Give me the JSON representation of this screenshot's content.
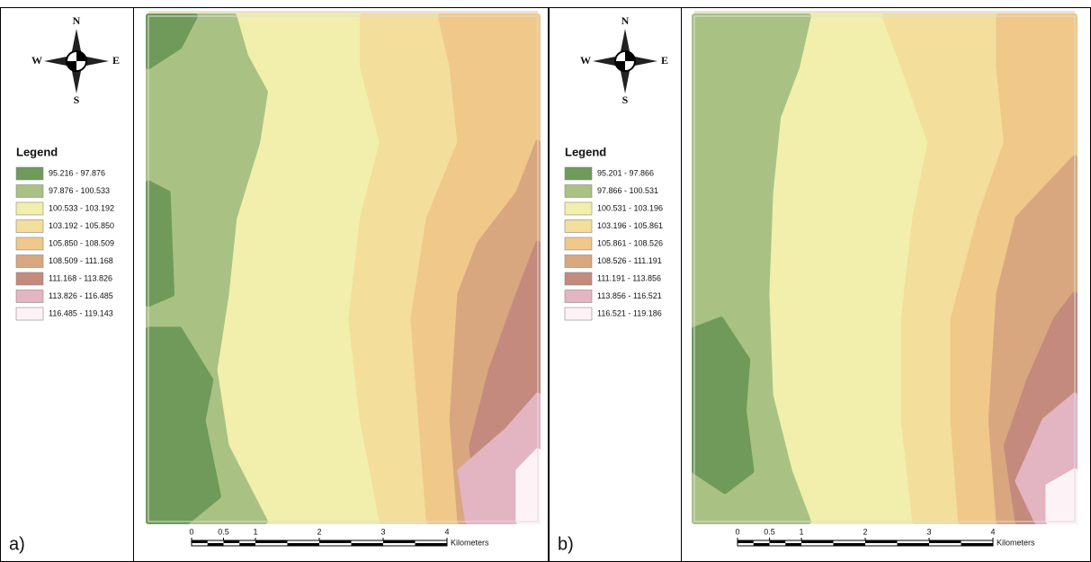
{
  "panels": [
    {
      "label": "a)",
      "compass": {
        "n": "N",
        "s": "S",
        "w": "W",
        "e": "E"
      },
      "legend": {
        "title": "Legend",
        "classes": [
          {
            "label": "95.216 - 97.876",
            "color": "#6f9a5a"
          },
          {
            "label": "97.876 - 100.533",
            "color": "#a9c284"
          },
          {
            "label": "100.533 - 103.192",
            "color": "#f1efab"
          },
          {
            "label": "103.192 - 105.850",
            "color": "#f3de9c"
          },
          {
            "label": "105.850 - 108.509",
            "color": "#efc88a"
          },
          {
            "label": "108.509 - 111.168",
            "color": "#d9a77f"
          },
          {
            "label": "111.168 - 113.826",
            "color": "#c38a7d"
          },
          {
            "label": "113.826 - 116.485",
            "color": "#e3b4c2"
          },
          {
            "label": "116.485 - 119.143",
            "color": "#fdf3f7"
          }
        ]
      },
      "scale": {
        "ticks": [
          0,
          0.5,
          1,
          2,
          3,
          4
        ],
        "unit": "Kilometers"
      }
    },
    {
      "label": "b)",
      "compass": {
        "n": "N",
        "s": "S",
        "w": "W",
        "e": "E"
      },
      "legend": {
        "title": "Legend",
        "classes": [
          {
            "label": "95.201 - 97.866",
            "color": "#6f9a5a"
          },
          {
            "label": "97.866 - 100.531",
            "color": "#a9c284"
          },
          {
            "label": "100.531 - 103.196",
            "color": "#f1efab"
          },
          {
            "label": "103.196 - 105.861",
            "color": "#f3de9c"
          },
          {
            "label": "105.861 - 108.526",
            "color": "#efc88a"
          },
          {
            "label": "108.526 - 111.191",
            "color": "#d9a77f"
          },
          {
            "label": "111.191 - 113.856",
            "color": "#c38a7d"
          },
          {
            "label": "113.856 - 116.521",
            "color": "#e3b4c2"
          },
          {
            "label": "116.521 - 119.186",
            "color": "#fdf3f7"
          }
        ]
      },
      "scale": {
        "ticks": [
          0,
          0.5,
          1,
          2,
          3,
          4
        ],
        "unit": "Kilometers"
      }
    }
  ]
}
